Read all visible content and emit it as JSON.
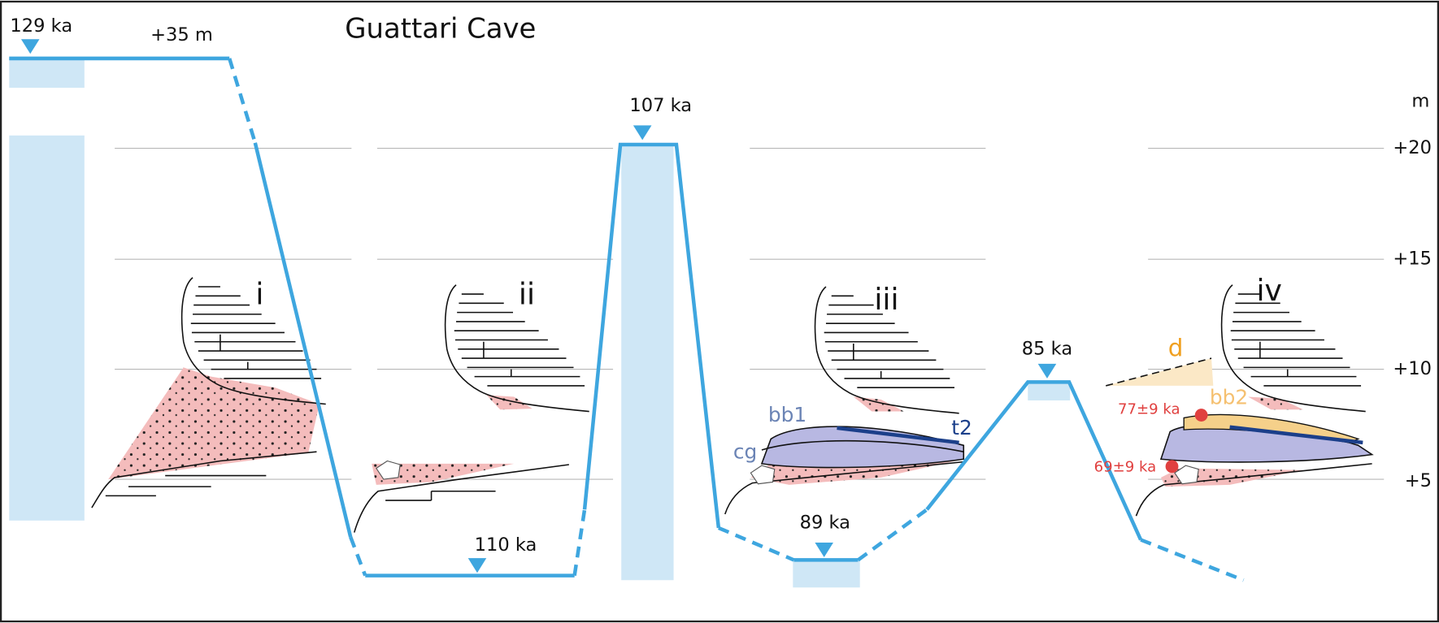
{
  "title": "Guattari Cave",
  "scale": {
    "unit": "m",
    "labels": [
      "+20",
      "+15",
      "+10",
      "+5"
    ]
  },
  "sea_levels": {
    "top_label": "129 ka",
    "top_height": "+35 m",
    "stage_2": "110 ka",
    "stage_3": "107 ka",
    "stage_4": "89 ka",
    "stage_5": "85 ka"
  },
  "stages": [
    "i",
    "ii",
    "iii",
    "iv"
  ],
  "units": {
    "bb1": "bb1",
    "cg": "cg",
    "t2": "t2",
    "d": "d",
    "bb2": "bb2"
  },
  "dates": [
    "77±9 ka",
    "69±9 ka"
  ]
}
